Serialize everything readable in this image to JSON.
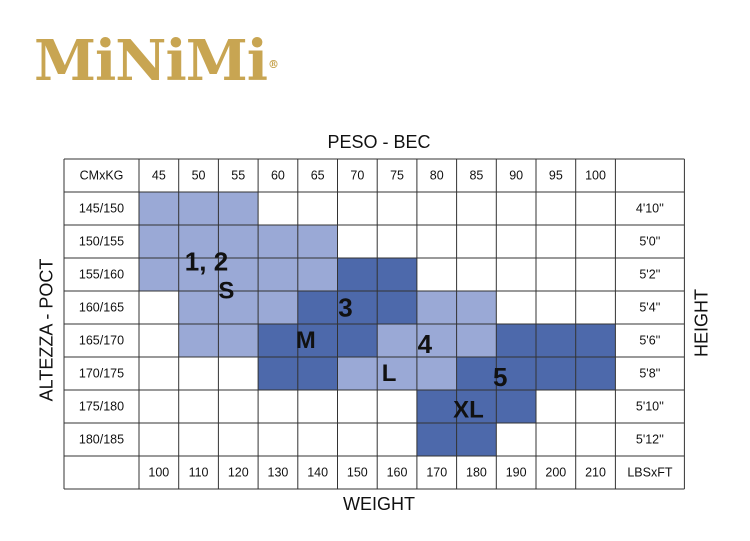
{
  "logo": {
    "text": "MiNiMi",
    "mark": "®",
    "color": "#c8a552"
  },
  "axes": {
    "top": "PESO - BEC",
    "bottom": "WEIGHT",
    "left": "ALTEZZA - POCT",
    "right": "HEIGHT"
  },
  "chart_data": {
    "type": "table",
    "corner_top": "CMxKG",
    "corner_bottom": "LBSxFT",
    "kg": [
      "45",
      "50",
      "55",
      "60",
      "65",
      "70",
      "75",
      "80",
      "85",
      "90",
      "95",
      "100"
    ],
    "lbs": [
      "100",
      "110",
      "120",
      "130",
      "140",
      "150",
      "160",
      "170",
      "180",
      "190",
      "200",
      "210"
    ],
    "cm": [
      "145/150",
      "150/155",
      "155/160",
      "160/165",
      "165/170",
      "170/175",
      "175/180",
      "180/185"
    ],
    "ft": [
      "4'10''",
      "5'0''",
      "5'2''",
      "5'4''",
      "5'6''",
      "5'8''",
      "5'10''",
      "5'12''"
    ],
    "sizes": [
      {
        "number": "1, 2",
        "letter": "S",
        "color": "#9aa9d6",
        "cells": [
          [
            0,
            0,
            2
          ],
          [
            1,
            0,
            4
          ],
          [
            2,
            0,
            4
          ],
          [
            3,
            1,
            3
          ],
          [
            4,
            1,
            2
          ]
        ],
        "number_at": [
          1.7,
          2.1
        ],
        "letter_at": [
          2.2,
          3.0
        ]
      },
      {
        "number": "3",
        "letter": "M",
        "color": "#4d69ab",
        "cells": [
          [
            2,
            5,
            6
          ],
          [
            3,
            4,
            6
          ],
          [
            4,
            3,
            5
          ],
          [
            5,
            3,
            4
          ]
        ],
        "number_at": [
          5.2,
          3.5
        ],
        "letter_at": [
          4.2,
          4.5
        ]
      },
      {
        "number": "4",
        "letter": "L",
        "color": "#9aa9d6",
        "cells": [
          [
            3,
            7,
            8
          ],
          [
            4,
            6,
            8
          ],
          [
            5,
            5,
            7
          ]
        ],
        "number_at": [
          7.2,
          4.6
        ],
        "letter_at": [
          6.3,
          5.5
        ]
      },
      {
        "number": "5",
        "letter": "XL",
        "color": "#4d69ab",
        "cells": [
          [
            4,
            9,
            11
          ],
          [
            5,
            8,
            11
          ],
          [
            6,
            7,
            9
          ],
          [
            7,
            7,
            8
          ]
        ],
        "number_at": [
          9.1,
          5.6
        ],
        "letter_at": [
          8.3,
          6.6
        ]
      }
    ]
  }
}
